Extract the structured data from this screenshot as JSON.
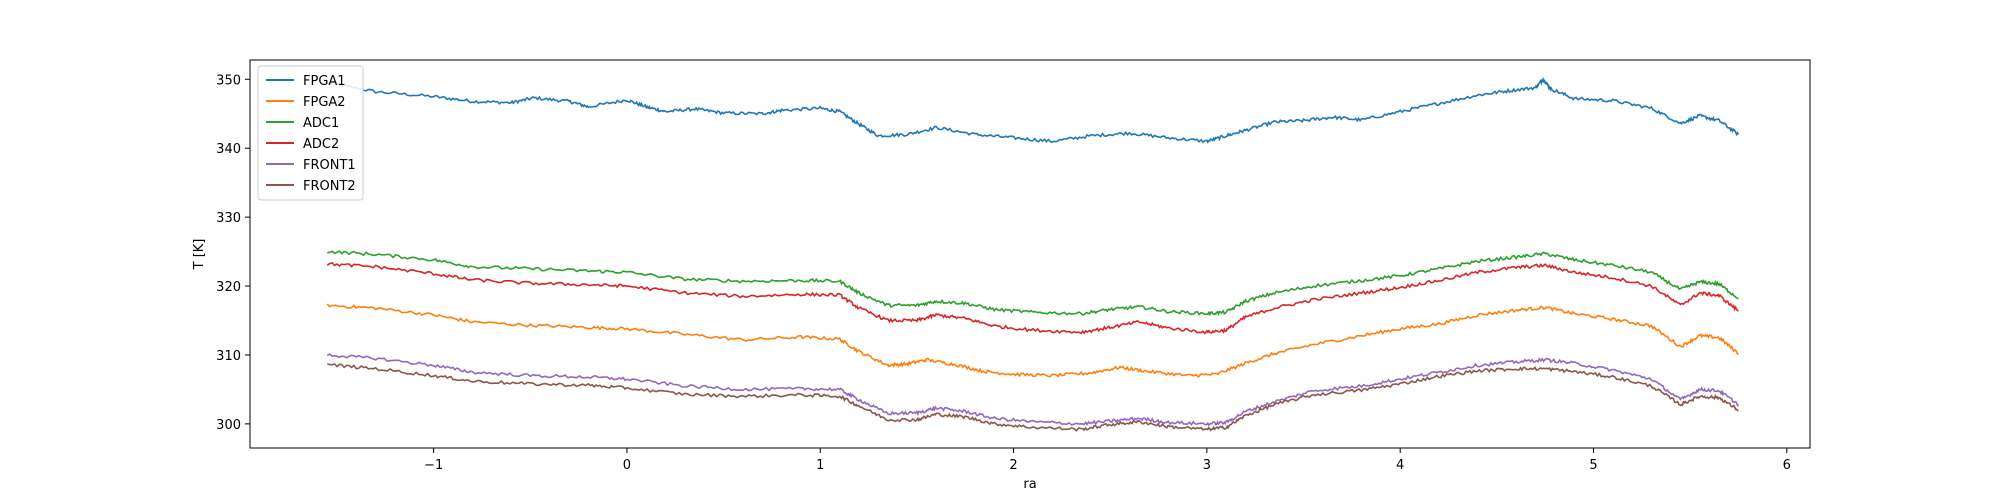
{
  "chart_data": {
    "type": "line",
    "title": "",
    "xlabel": "ra",
    "ylabel": "T [K]",
    "xlim": [
      -1.95,
      6.12
    ],
    "ylim": [
      296.5,
      352.8
    ],
    "xticks": [
      -1,
      0,
      1,
      2,
      3,
      4,
      5,
      6
    ],
    "yticks": [
      300,
      310,
      320,
      330,
      340,
      350
    ],
    "grid": false,
    "legend_position": "top-left",
    "series": [
      {
        "name": "FPGA1",
        "color": "#1f77b4",
        "points": [
          [
            -1.55,
            349.5
          ],
          [
            -1.3,
            348.2
          ],
          [
            -1.0,
            347.5
          ],
          [
            -0.8,
            346.8
          ],
          [
            -0.6,
            346.6
          ],
          [
            -0.48,
            347.3
          ],
          [
            -0.3,
            346.8
          ],
          [
            -0.2,
            346.0
          ],
          [
            0,
            347.0
          ],
          [
            0.1,
            346.0
          ],
          [
            0.2,
            345.3
          ],
          [
            0.35,
            345.7
          ],
          [
            0.5,
            345.1
          ],
          [
            0.7,
            345.0
          ],
          [
            0.8,
            345.5
          ],
          [
            1.0,
            345.8
          ],
          [
            1.1,
            345.3
          ],
          [
            1.2,
            343.5
          ],
          [
            1.3,
            341.8
          ],
          [
            1.45,
            342.0
          ],
          [
            1.6,
            343.0
          ],
          [
            1.8,
            342.0
          ],
          [
            2.0,
            341.5
          ],
          [
            2.2,
            341.0
          ],
          [
            2.4,
            341.8
          ],
          [
            2.6,
            342.2
          ],
          [
            2.8,
            341.5
          ],
          [
            3.0,
            341.0
          ],
          [
            3.1,
            341.8
          ],
          [
            3.2,
            342.6
          ],
          [
            3.35,
            343.8
          ],
          [
            3.5,
            344.0
          ],
          [
            3.65,
            344.5
          ],
          [
            3.8,
            344.1
          ],
          [
            4.0,
            345.3
          ],
          [
            4.2,
            346.5
          ],
          [
            4.4,
            347.7
          ],
          [
            4.55,
            348.3
          ],
          [
            4.7,
            348.8
          ],
          [
            4.74,
            350.0
          ],
          [
            4.78,
            348.6
          ],
          [
            4.9,
            347.2
          ],
          [
            5.1,
            346.9
          ],
          [
            5.3,
            345.8
          ],
          [
            5.45,
            343.6
          ],
          [
            5.55,
            344.7
          ],
          [
            5.65,
            344.0
          ],
          [
            5.75,
            342.0
          ]
        ]
      },
      {
        "name": "FPGA2",
        "color": "#ff7f0e",
        "points": [
          [
            -1.55,
            317.2
          ],
          [
            -1.3,
            316.8
          ],
          [
            -1.0,
            315.8
          ],
          [
            -0.8,
            314.8
          ],
          [
            -0.5,
            314.3
          ],
          [
            -0.2,
            314.0
          ],
          [
            0,
            313.8
          ],
          [
            0.3,
            313.0
          ],
          [
            0.6,
            312.2
          ],
          [
            0.9,
            312.6
          ],
          [
            1.1,
            312.3
          ],
          [
            1.2,
            310.5
          ],
          [
            1.35,
            308.5
          ],
          [
            1.45,
            308.7
          ],
          [
            1.55,
            309.3
          ],
          [
            1.7,
            308.6
          ],
          [
            1.85,
            307.6
          ],
          [
            2.0,
            307.2
          ],
          [
            2.2,
            307.0
          ],
          [
            2.4,
            307.4
          ],
          [
            2.55,
            308.2
          ],
          [
            2.7,
            307.6
          ],
          [
            2.9,
            307.0
          ],
          [
            3.05,
            307.2
          ],
          [
            3.2,
            308.8
          ],
          [
            3.35,
            310.2
          ],
          [
            3.55,
            311.5
          ],
          [
            3.8,
            312.8
          ],
          [
            4.0,
            313.8
          ],
          [
            4.2,
            314.5
          ],
          [
            4.4,
            315.8
          ],
          [
            4.6,
            316.5
          ],
          [
            4.75,
            316.9
          ],
          [
            4.9,
            316.0
          ],
          [
            5.1,
            315.2
          ],
          [
            5.3,
            314.2
          ],
          [
            5.45,
            311.2
          ],
          [
            5.55,
            312.8
          ],
          [
            5.65,
            312.5
          ],
          [
            5.75,
            310.2
          ]
        ]
      },
      {
        "name": "ADC1",
        "color": "#2ca02c",
        "points": [
          [
            -1.55,
            325.0
          ],
          [
            -1.3,
            324.6
          ],
          [
            -1.0,
            323.8
          ],
          [
            -0.8,
            322.8
          ],
          [
            -0.5,
            322.5
          ],
          [
            -0.2,
            322.2
          ],
          [
            0,
            322.0
          ],
          [
            0.3,
            321.0
          ],
          [
            0.6,
            320.7
          ],
          [
            0.9,
            320.8
          ],
          [
            1.1,
            320.7
          ],
          [
            1.2,
            319.0
          ],
          [
            1.35,
            317.2
          ],
          [
            1.5,
            317.2
          ],
          [
            1.6,
            317.8
          ],
          [
            1.75,
            317.5
          ],
          [
            1.9,
            316.6
          ],
          [
            2.1,
            316.2
          ],
          [
            2.35,
            316.0
          ],
          [
            2.5,
            316.6
          ],
          [
            2.65,
            317.0
          ],
          [
            2.8,
            316.3
          ],
          [
            3.0,
            316.0
          ],
          [
            3.1,
            316.2
          ],
          [
            3.2,
            317.8
          ],
          [
            3.35,
            319.0
          ],
          [
            3.55,
            320.0
          ],
          [
            3.8,
            320.8
          ],
          [
            4.0,
            321.5
          ],
          [
            4.2,
            322.5
          ],
          [
            4.4,
            323.6
          ],
          [
            4.6,
            324.2
          ],
          [
            4.75,
            324.7
          ],
          [
            4.9,
            323.8
          ],
          [
            5.1,
            323.0
          ],
          [
            5.3,
            322.0
          ],
          [
            5.45,
            319.5
          ],
          [
            5.55,
            320.6
          ],
          [
            5.65,
            320.3
          ],
          [
            5.75,
            318.2
          ]
        ]
      },
      {
        "name": "ADC2",
        "color": "#d62728",
        "points": [
          [
            -1.55,
            323.2
          ],
          [
            -1.3,
            322.8
          ],
          [
            -1.0,
            321.8
          ],
          [
            -0.8,
            320.9
          ],
          [
            -0.5,
            320.4
          ],
          [
            -0.2,
            320.2
          ],
          [
            0,
            320.0
          ],
          [
            0.3,
            319.0
          ],
          [
            0.6,
            318.5
          ],
          [
            0.9,
            318.8
          ],
          [
            1.1,
            318.7
          ],
          [
            1.2,
            316.8
          ],
          [
            1.35,
            315.0
          ],
          [
            1.5,
            315.0
          ],
          [
            1.6,
            315.8
          ],
          [
            1.75,
            315.3
          ],
          [
            1.9,
            314.2
          ],
          [
            2.1,
            313.6
          ],
          [
            2.35,
            313.3
          ],
          [
            2.5,
            314.0
          ],
          [
            2.65,
            314.8
          ],
          [
            2.8,
            313.9
          ],
          [
            3.0,
            313.3
          ],
          [
            3.1,
            313.6
          ],
          [
            3.2,
            315.5
          ],
          [
            3.35,
            316.8
          ],
          [
            3.55,
            318.0
          ],
          [
            3.8,
            319.0
          ],
          [
            4.0,
            319.8
          ],
          [
            4.2,
            320.8
          ],
          [
            4.4,
            322.0
          ],
          [
            4.6,
            322.7
          ],
          [
            4.75,
            323.0
          ],
          [
            4.9,
            322.0
          ],
          [
            5.1,
            321.2
          ],
          [
            5.3,
            320.0
          ],
          [
            5.45,
            317.2
          ],
          [
            5.55,
            319.0
          ],
          [
            5.65,
            318.6
          ],
          [
            5.75,
            316.4
          ]
        ]
      },
      {
        "name": "FRONT1",
        "color": "#9467bd",
        "points": [
          [
            -1.55,
            310.0
          ],
          [
            -1.3,
            309.5
          ],
          [
            -1.0,
            308.5
          ],
          [
            -0.8,
            307.5
          ],
          [
            -0.5,
            307.0
          ],
          [
            -0.2,
            306.8
          ],
          [
            0,
            306.5
          ],
          [
            0.3,
            305.5
          ],
          [
            0.6,
            305.0
          ],
          [
            0.9,
            305.1
          ],
          [
            1.1,
            305.0
          ],
          [
            1.2,
            303.5
          ],
          [
            1.35,
            301.5
          ],
          [
            1.5,
            301.6
          ],
          [
            1.6,
            302.3
          ],
          [
            1.75,
            301.8
          ],
          [
            1.9,
            300.8
          ],
          [
            2.1,
            300.3
          ],
          [
            2.35,
            300.0
          ],
          [
            2.5,
            300.4
          ],
          [
            2.65,
            300.8
          ],
          [
            2.8,
            300.2
          ],
          [
            3.0,
            300.0
          ],
          [
            3.1,
            300.2
          ],
          [
            3.2,
            301.8
          ],
          [
            3.35,
            303.2
          ],
          [
            3.55,
            304.8
          ],
          [
            3.8,
            305.5
          ],
          [
            4.0,
            306.5
          ],
          [
            4.2,
            307.5
          ],
          [
            4.4,
            308.5
          ],
          [
            4.6,
            309.0
          ],
          [
            4.75,
            309.3
          ],
          [
            4.9,
            308.8
          ],
          [
            5.1,
            307.8
          ],
          [
            5.3,
            306.5
          ],
          [
            5.45,
            303.5
          ],
          [
            5.55,
            305.0
          ],
          [
            5.65,
            304.8
          ],
          [
            5.75,
            302.8
          ]
        ]
      },
      {
        "name": "FRONT2",
        "color": "#8c564b",
        "points": [
          [
            -1.55,
            308.6
          ],
          [
            -1.3,
            308.0
          ],
          [
            -1.0,
            307.0
          ],
          [
            -0.8,
            306.2
          ],
          [
            -0.5,
            305.8
          ],
          [
            -0.2,
            305.6
          ],
          [
            0,
            305.2
          ],
          [
            0.3,
            304.3
          ],
          [
            0.6,
            304.0
          ],
          [
            0.9,
            304.2
          ],
          [
            1.1,
            304.0
          ],
          [
            1.2,
            302.6
          ],
          [
            1.35,
            300.6
          ],
          [
            1.5,
            300.6
          ],
          [
            1.6,
            301.4
          ],
          [
            1.75,
            301.0
          ],
          [
            1.9,
            300.0
          ],
          [
            2.1,
            299.5
          ],
          [
            2.35,
            299.2
          ],
          [
            2.5,
            299.9
          ],
          [
            2.65,
            300.3
          ],
          [
            2.8,
            299.6
          ],
          [
            3.0,
            299.2
          ],
          [
            3.1,
            299.5
          ],
          [
            3.2,
            301.2
          ],
          [
            3.35,
            302.8
          ],
          [
            3.55,
            304.2
          ],
          [
            3.8,
            304.9
          ],
          [
            4.0,
            305.8
          ],
          [
            4.2,
            306.9
          ],
          [
            4.4,
            307.7
          ],
          [
            4.6,
            308.0
          ],
          [
            4.75,
            308.0
          ],
          [
            4.9,
            307.6
          ],
          [
            5.1,
            306.8
          ],
          [
            5.3,
            305.5
          ],
          [
            5.45,
            302.8
          ],
          [
            5.55,
            304.0
          ],
          [
            5.65,
            303.8
          ],
          [
            5.75,
            302.0
          ]
        ]
      }
    ]
  }
}
